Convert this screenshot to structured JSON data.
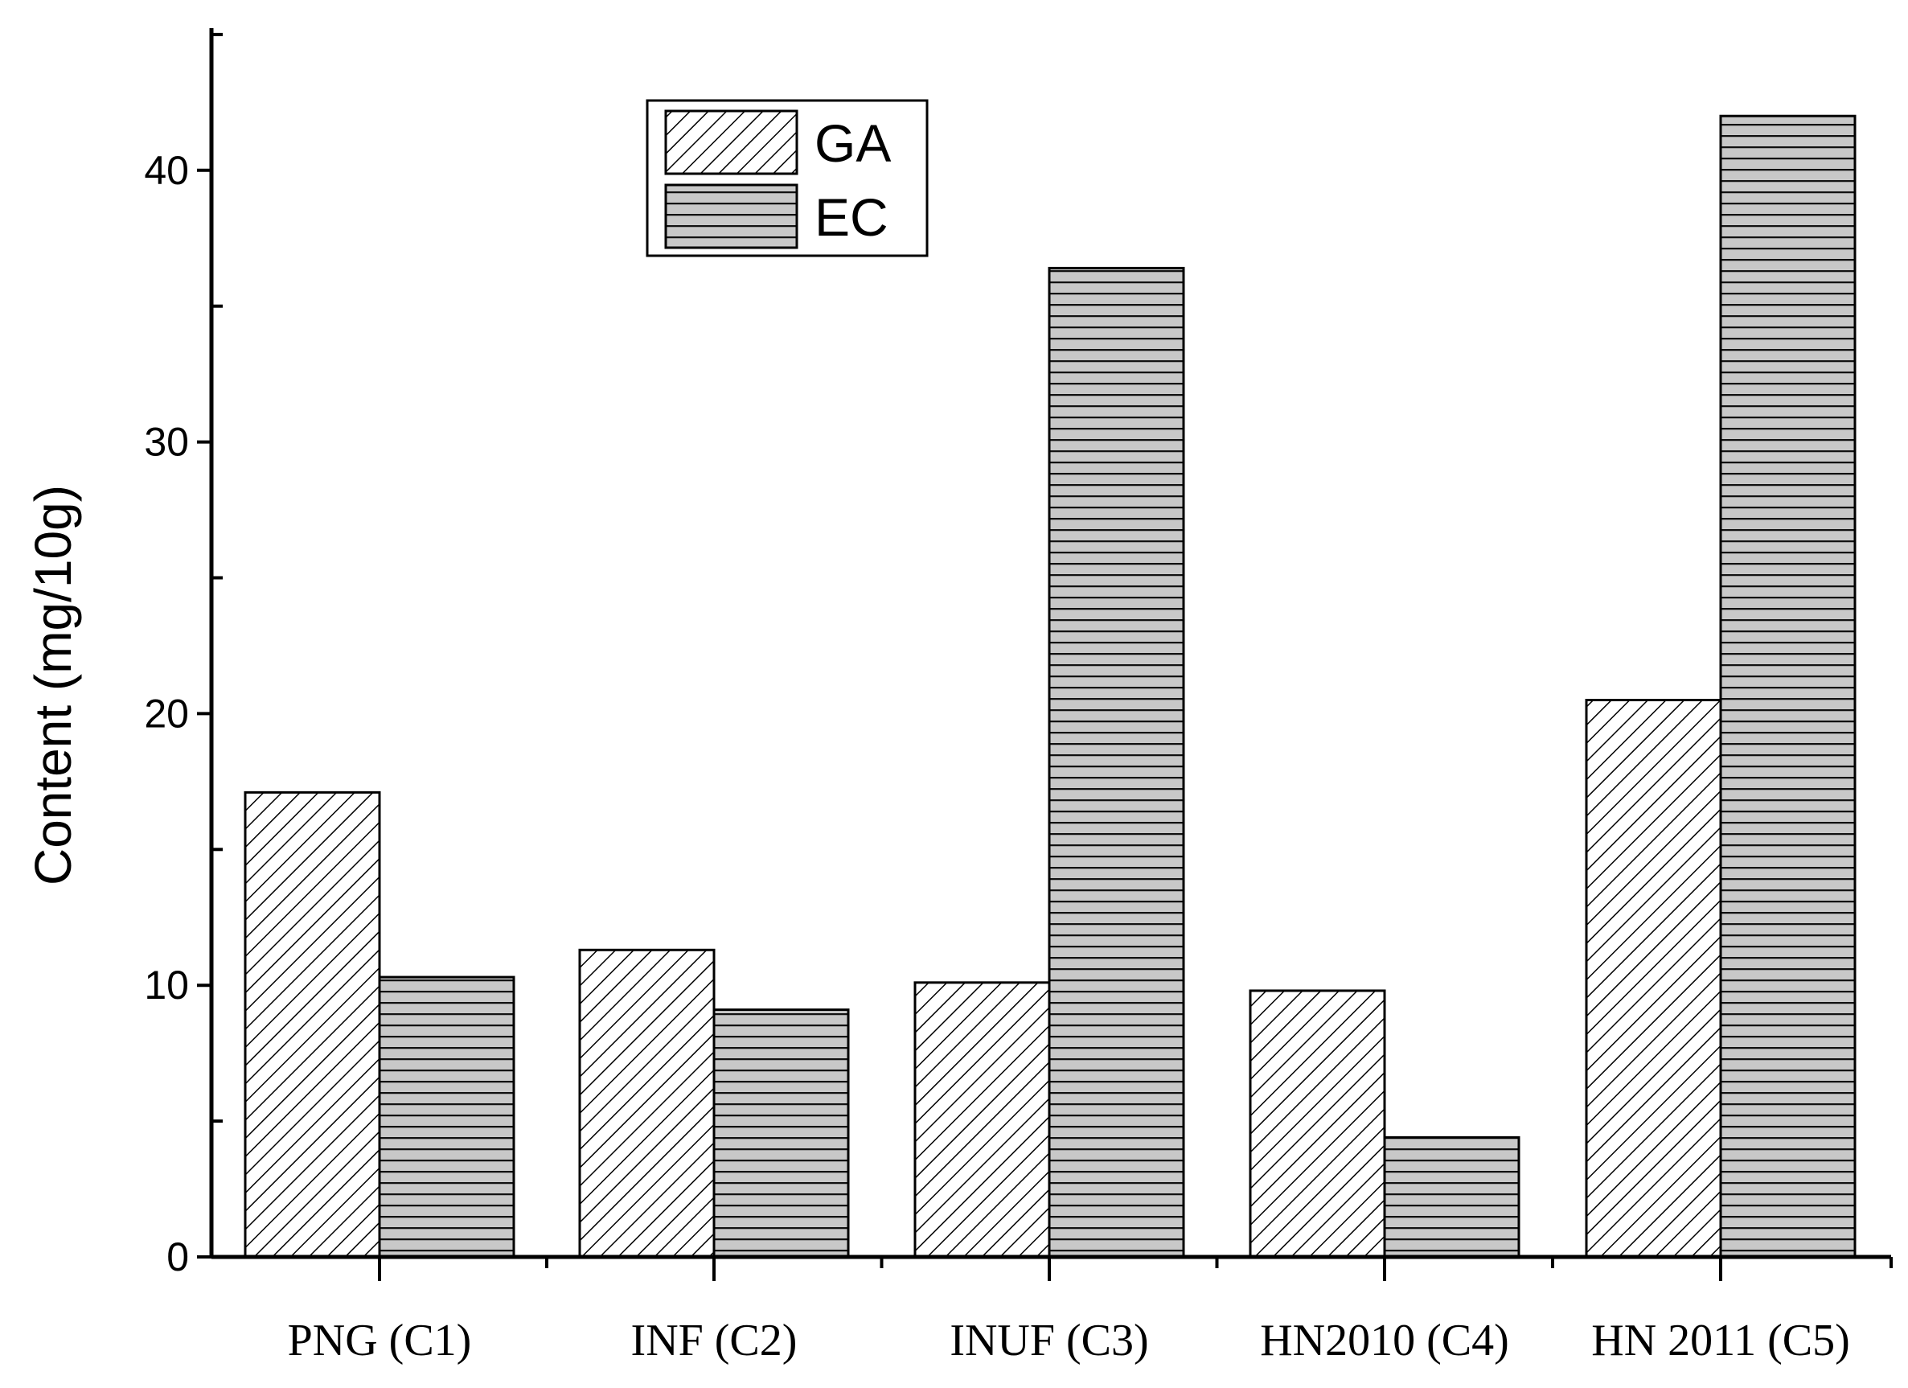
{
  "chart_data": {
    "type": "bar",
    "categories": [
      "PNG (C1)",
      "INF (C2)",
      "INUF (C3)",
      "HN2010 (C4)",
      "HN 2011 (C5)"
    ],
    "series": [
      {
        "name": "GA",
        "values": [
          17.1,
          11.3,
          10.1,
          9.8,
          20.5
        ],
        "pattern": "diagonal-hatch"
      },
      {
        "name": "EC",
        "values": [
          10.3,
          9.1,
          36.4,
          4.4,
          42.0
        ],
        "pattern": "horizontal-lines"
      }
    ],
    "title": "",
    "xlabel": "",
    "ylabel": "Content (mg/10g)",
    "ylim": [
      0,
      45
    ],
    "yticks": [
      0,
      10,
      20,
      30,
      40
    ],
    "grid": false,
    "legend_position": "top-center",
    "colors": {
      "ga_fill": "#ffffff",
      "ec_fill": "#c8c8c8",
      "line": "#000000"
    }
  }
}
